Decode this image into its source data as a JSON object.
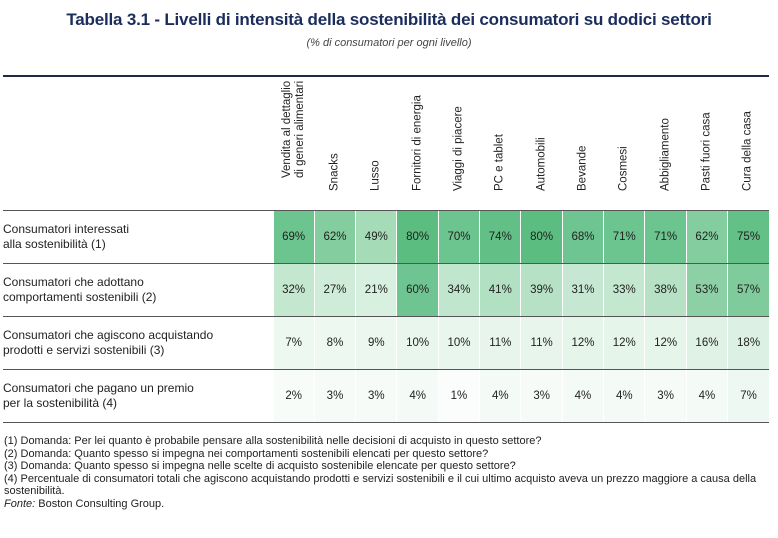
{
  "title": "Tabella 3.1 - Livelli di intensità della sostenibilità dei consumatori su dodici settori",
  "subtitle": "(% di consumatori per ogni livello)",
  "columns": [
    "Vendita al dettaglio\ndi generi alimentari",
    "Snacks",
    "Lusso",
    "Fornitori di energia",
    "Viaggi di piacere",
    "PC e tablet",
    "Automobili",
    "Bevande",
    "Cosmesi",
    "Abbigliamento",
    "Pasti fuori casa",
    "Cura della casa"
  ],
  "rows": [
    {
      "label": "Consumatori interessati\nalla sostenibilità (1)",
      "values": [
        "69%",
        "62%",
        "49%",
        "80%",
        "70%",
        "74%",
        "80%",
        "68%",
        "71%",
        "71%",
        "62%",
        "75%"
      ],
      "colors": [
        "#6cc48e",
        "#84cd9f",
        "#a6dbb8",
        "#5cbd80",
        "#6cc48e",
        "#62bf85",
        "#5cbd80",
        "#6fc591",
        "#6cc48e",
        "#6cc48e",
        "#84cd9f",
        "#63c086"
      ]
    },
    {
      "label": "Consumatori che adottano\ncomportamenti sostenibili (2)",
      "values": [
        "32%",
        "27%",
        "21%",
        "60%",
        "34%",
        "41%",
        "39%",
        "31%",
        "33%",
        "38%",
        "53%",
        "57%"
      ],
      "colors": [
        "#c3e7cf",
        "#ceecd8",
        "#d8f0e0",
        "#6fc591",
        "#c0e6cd",
        "#b2e0c2",
        "#b6e1c5",
        "#c6e8d2",
        "#c3e7cf",
        "#b6e1c5",
        "#8dd0a6",
        "#7fcb9b"
      ]
    },
    {
      "label": "Consumatori che agiscono acquistando\nprodotti e servizi sostenibili (3)",
      "values": [
        "7%",
        "8%",
        "9%",
        "10%",
        "10%",
        "11%",
        "11%",
        "12%",
        "12%",
        "12%",
        "16%",
        "18%"
      ],
      "colors": [
        "#edf8f1",
        "#ecf8f0",
        "#ebf7ef",
        "#e9f6ed",
        "#e9f6ed",
        "#e7f5ec",
        "#e7f5ec",
        "#e5f5ea",
        "#e5f5ea",
        "#e5f5ea",
        "#e0f2e6",
        "#dcf1e3"
      ]
    },
    {
      "label": "Consumatori che pagano un premio\nper la sostenibilità (4)",
      "values": [
        "2%",
        "3%",
        "3%",
        "4%",
        "1%",
        "4%",
        "3%",
        "4%",
        "4%",
        "3%",
        "4%",
        "7%"
      ],
      "colors": [
        "#f8fcf9",
        "#f6fbf8",
        "#f6fbf8",
        "#f4fbf6",
        "#fafdfb",
        "#f4fbf6",
        "#f6fbf8",
        "#f4fbf6",
        "#f4fbf6",
        "#f6fbf8",
        "#f4fbf6",
        "#eef8f2"
      ]
    }
  ],
  "footnotes": [
    "(1) Domanda: Per lei quanto è probabile pensare alla sostenibilità nelle decisioni di acquisto in questo settore?",
    "(2) Domanda: Quanto spesso si impegna nei comportamenti sostenibili elencati per questo settore?",
    "(3) Domanda: Quanto spesso si impegna nelle scelte di acquisto sostenibile elencate per questo settore?",
    "(4) Percentuale di consumatori totali che agiscono acquistando prodotti e servizi sostenibili e il cui ultimo acquisto aveva un prezzo maggiore a causa della sostenibilità."
  ],
  "source_label": "Fonte:",
  "source_text": " Boston Consulting Group."
}
